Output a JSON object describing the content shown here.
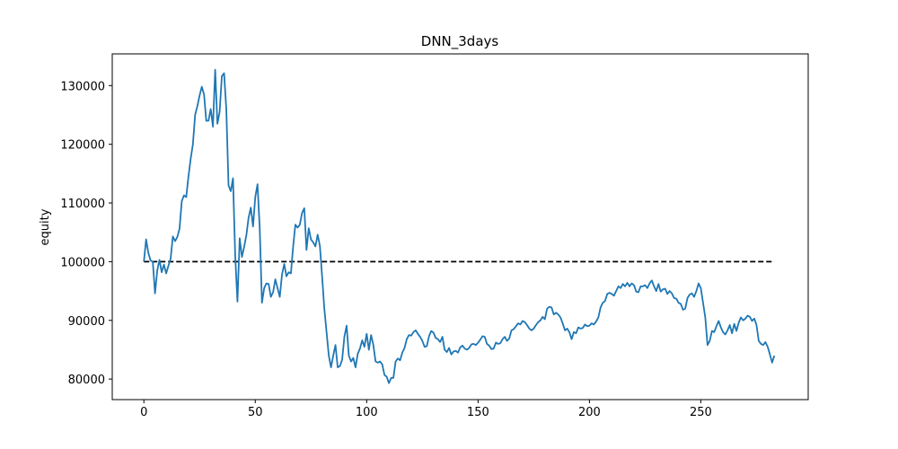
{
  "chart_data": {
    "type": "line",
    "title": "DNN_3days",
    "ylabel": "equity",
    "series": [
      {
        "color": "#1f77b4",
        "values": [
          100000,
          103800,
          101500,
          100200,
          100000,
          94600,
          98500,
          100300,
          98200,
          99500,
          98000,
          99300,
          100500,
          104300,
          103500,
          104200,
          105600,
          110300,
          111300,
          111000,
          114500,
          117500,
          120000,
          125000,
          126500,
          128300,
          129800,
          128500,
          124000,
          124000,
          126000,
          123000,
          132700,
          123500,
          125500,
          131600,
          132100,
          126000,
          113000,
          112000,
          114200,
          101000,
          93200,
          104000,
          100800,
          102500,
          104500,
          107500,
          109200,
          106000,
          111000,
          113200,
          105700,
          93000,
          95500,
          96300,
          96200,
          94000,
          94800,
          97000,
          95500,
          94000,
          97800,
          99600,
          97500,
          98200,
          98000,
          102600,
          106300,
          105800,
          106300,
          108300,
          109100,
          102000,
          105700,
          103800,
          103300,
          102600,
          104600,
          102700,
          97500,
          92000,
          88000,
          84000,
          82000,
          84000,
          85800,
          82000,
          82200,
          83300,
          87200,
          89100,
          84000,
          83000,
          83600,
          82000,
          84300,
          85200,
          86600,
          85500,
          87700,
          85000,
          87500,
          85800,
          83000,
          82800,
          83000,
          82500,
          80700,
          80400,
          79300,
          80200,
          80200,
          83000,
          83500,
          83200,
          84500,
          85300,
          86800,
          87500,
          87400,
          88000,
          88300,
          87700,
          87200,
          86500,
          85500,
          85600,
          87300,
          88200,
          87900,
          87000,
          86800,
          86300,
          87200,
          85000,
          84600,
          85300,
          84200,
          84700,
          84800,
          84500,
          85400,
          85700,
          85200,
          85000,
          85300,
          85900,
          86000,
          85800,
          86200,
          86700,
          87300,
          87200,
          86000,
          85700,
          85100,
          85200,
          86200,
          86000,
          86100,
          86800,
          87200,
          86500,
          86900,
          88300,
          88500,
          89000,
          89500,
          89300,
          89900,
          89700,
          89200,
          88600,
          88300,
          88600,
          89200,
          89700,
          90000,
          90600,
          90200,
          92000,
          92300,
          92200,
          91000,
          91300,
          91000,
          90500,
          89500,
          88300,
          88600,
          88000,
          86800,
          88000,
          87800,
          88800,
          88600,
          88700,
          89300,
          89000,
          89100,
          89500,
          89300,
          89800,
          90500,
          92200,
          93000,
          93300,
          94500,
          94700,
          94500,
          94200,
          95000,
          95800,
          95500,
          96200,
          95800,
          96400,
          95800,
          96300,
          96000,
          94900,
          94800,
          95800,
          95800,
          96000,
          95500,
          96300,
          96800,
          95800,
          95000,
          96200,
          94900,
          95300,
          95400,
          94500,
          95000,
          94600,
          93800,
          93700,
          93000,
          92800,
          91800,
          92000,
          93800,
          94400,
          94600,
          94000,
          95000,
          96300,
          95500,
          93000,
          90500,
          85800,
          86500,
          88200,
          88000,
          89000,
          89900,
          88800,
          88000,
          87600,
          88300,
          89200,
          87800,
          89400,
          88200,
          89600,
          90500,
          90000,
          90300,
          90800,
          90600,
          89900,
          90300,
          89200,
          86500,
          86000,
          85800,
          86300,
          85500,
          84200,
          82800,
          84000
        ]
      }
    ],
    "hline": {
      "y": 100000,
      "xmin": 0,
      "xmax": 283,
      "color": "#000000",
      "style": "dashed"
    },
    "xlim": [
      -14.2,
      298.2
    ],
    "ylim": [
      76500,
      135400
    ],
    "xticks": [
      0,
      50,
      100,
      150,
      200,
      250
    ],
    "yticks": [
      80000,
      90000,
      100000,
      110000,
      120000,
      130000
    ]
  }
}
